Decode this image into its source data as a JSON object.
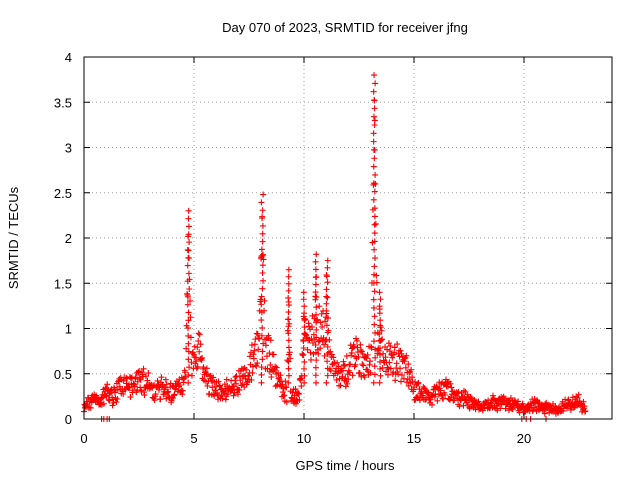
{
  "chart_data": {
    "type": "scatter",
    "title": "Day 070 of 2023, SRMTID for receiver jfng",
    "xlabel": "GPS time / hours",
    "ylabel": "SRMTID / TECUs",
    "xlim": [
      0,
      24
    ],
    "ylim": [
      0,
      4
    ],
    "x_ticks": [
      0,
      5,
      10,
      15,
      20
    ],
    "y_ticks": [
      0,
      0.5,
      1,
      1.5,
      2,
      2.5,
      3,
      3.5,
      4
    ],
    "x_tick_labels": [
      "0",
      "5",
      "10",
      "15",
      "20"
    ],
    "y_tick_labels": [
      "0",
      "0.5",
      "1",
      "1.5",
      "2",
      "2.5",
      "3",
      "3.5",
      "4"
    ],
    "grid": true,
    "marker": "+",
    "color": "#ff0000",
    "series": [
      {
        "name": "SRMTID",
        "profile": [
          [
            0.0,
            0.15
          ],
          [
            0.3,
            0.2
          ],
          [
            0.5,
            0.25
          ],
          [
            0.8,
            0.2
          ],
          [
            1.0,
            0.3
          ],
          [
            1.3,
            0.25
          ],
          [
            1.6,
            0.35
          ],
          [
            2.0,
            0.35
          ],
          [
            2.3,
            0.4
          ],
          [
            2.6,
            0.45
          ],
          [
            3.0,
            0.35
          ],
          [
            3.3,
            0.3
          ],
          [
            3.6,
            0.35
          ],
          [
            4.0,
            0.3
          ],
          [
            4.3,
            0.35
          ],
          [
            4.6,
            0.45
          ],
          [
            4.9,
            0.6
          ],
          [
            5.2,
            0.8
          ],
          [
            5.5,
            0.5
          ],
          [
            5.8,
            0.35
          ],
          [
            6.2,
            0.3
          ],
          [
            6.6,
            0.35
          ],
          [
            7.0,
            0.4
          ],
          [
            7.4,
            0.5
          ],
          [
            7.7,
            0.7
          ],
          [
            8.0,
            0.9
          ],
          [
            8.3,
            0.8
          ],
          [
            8.6,
            0.6
          ],
          [
            9.0,
            0.35
          ],
          [
            9.4,
            0.25
          ],
          [
            9.8,
            0.3
          ],
          [
            10.1,
            1.0
          ],
          [
            10.4,
            0.9
          ],
          [
            10.7,
            1.0
          ],
          [
            11.0,
            0.95
          ],
          [
            11.3,
            0.6
          ],
          [
            11.6,
            0.45
          ],
          [
            12.0,
            0.55
          ],
          [
            12.3,
            0.75
          ],
          [
            12.6,
            0.6
          ],
          [
            13.0,
            0.65
          ],
          [
            13.3,
            0.9
          ],
          [
            13.6,
            0.7
          ],
          [
            14.0,
            0.6
          ],
          [
            14.3,
            0.65
          ],
          [
            14.6,
            0.55
          ],
          [
            15.0,
            0.35
          ],
          [
            15.4,
            0.25
          ],
          [
            15.8,
            0.25
          ],
          [
            16.2,
            0.35
          ],
          [
            16.6,
            0.3
          ],
          [
            17.0,
            0.25
          ],
          [
            17.5,
            0.2
          ],
          [
            18.0,
            0.15
          ],
          [
            18.5,
            0.17
          ],
          [
            19.0,
            0.2
          ],
          [
            19.5,
            0.17
          ],
          [
            20.0,
            0.12
          ],
          [
            20.5,
            0.15
          ],
          [
            21.0,
            0.12
          ],
          [
            21.5,
            0.1
          ],
          [
            22.0,
            0.18
          ],
          [
            22.5,
            0.2
          ],
          [
            22.8,
            0.1
          ]
        ],
        "spikes": [
          {
            "x": 4.75,
            "peak": 2.3,
            "width": 0.12
          },
          {
            "x": 8.1,
            "peak": 2.48,
            "width": 0.15
          },
          {
            "x": 9.3,
            "peak": 1.65,
            "width": 0.08
          },
          {
            "x": 10.0,
            "peak": 1.4,
            "width": 0.1
          },
          {
            "x": 10.55,
            "peak": 1.82,
            "width": 0.1
          },
          {
            "x": 11.05,
            "peak": 1.75,
            "width": 0.12
          },
          {
            "x": 13.2,
            "peak": 3.8,
            "width": 0.12
          },
          {
            "x": 13.45,
            "peak": 1.4,
            "width": 0.1
          }
        ]
      }
    ]
  }
}
